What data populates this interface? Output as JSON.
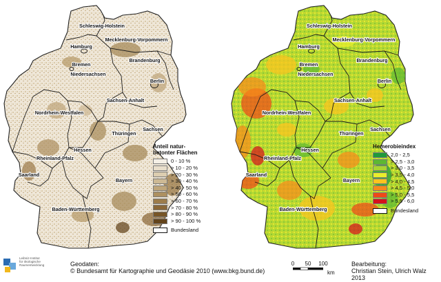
{
  "left_map": {
    "legend": {
      "title_line1": "Anteil natur-",
      "title_line2": "betonter Flächen",
      "classes": [
        {
          "label": "0 - 10 %",
          "color": "#f4efe6"
        },
        {
          "label": "> 10 - 20 %",
          "color": "#e8decb"
        },
        {
          "label": "> 20 - 30 %",
          "color": "#dccdb0"
        },
        {
          "label": "> 30 - 40 %",
          "color": "#cdb994"
        },
        {
          "label": "> 40 - 50 %",
          "color": "#bea57a"
        },
        {
          "label": "> 50 - 60 %",
          "color": "#ad9061"
        },
        {
          "label": "> 60 - 70 %",
          "color": "#9c7c4b"
        },
        {
          "label": "> 70 - 80 %",
          "color": "#8a6838"
        },
        {
          "label": "> 80 - 90 %",
          "color": "#775628"
        },
        {
          "label": "> 90 - 100 %",
          "color": "#63441b"
        }
      ],
      "boundary_label": "Bundesland"
    }
  },
  "right_map": {
    "legend": {
      "title": "Hemerobieindex",
      "classes": [
        {
          "label": "2,0 - 2,5",
          "color": "#1f9a3b"
        },
        {
          "label": "> 2,5 - 3,0",
          "color": "#5cb832"
        },
        {
          "label": "> 3,0 - 3,5",
          "color": "#a9d431"
        },
        {
          "label": "> 3,5 - 4,0",
          "color": "#e9ee2c"
        },
        {
          "label": "> 4,0 - 4,5",
          "color": "#fbc41e"
        },
        {
          "label": "> 4,5 - 5,0",
          "color": "#f68a1b"
        },
        {
          "label": "> 5,0 - 5,5",
          "color": "#ef4a18"
        },
        {
          "label": "> 5,5 - 6,0",
          "color": "#d5121c"
        }
      ],
      "boundary_label": "Bundesland"
    }
  },
  "states": [
    {
      "name": "Schleswig-Holstein"
    },
    {
      "name": "Hamburg"
    },
    {
      "name": "Mecklenburg-Vorpommern"
    },
    {
      "name": "Bremen"
    },
    {
      "name": "Niedersachsen"
    },
    {
      "name": "Brandenburg"
    },
    {
      "name": "Berlin"
    },
    {
      "name": "Sachsen-Anhalt"
    },
    {
      "name": "Nordrhein-Westfalen"
    },
    {
      "name": "Sachsen"
    },
    {
      "name": "Thüringen"
    },
    {
      "name": "Hessen"
    },
    {
      "name": "Rheinland-Pfalz"
    },
    {
      "name": "Saarland"
    },
    {
      "name": "Bayern"
    },
    {
      "name": "Baden-Württemberg"
    }
  ],
  "footer": {
    "logo_line1": "Leibniz-Institut",
    "logo_line2": "für ökologische",
    "logo_line3": "Raumentwicklung",
    "geodata_line1": "Geodaten:",
    "geodata_line2": "© Bundesamt für Kartographie und Geodäsie 2010 (www.bkg.bund.de)",
    "scale_ticks": [
      "0",
      "50",
      "100"
    ],
    "scale_unit": "km",
    "credits_line1": "Bearbeitung:",
    "credits_line2": "Christian Stein, Ulrich Walz 2013"
  }
}
